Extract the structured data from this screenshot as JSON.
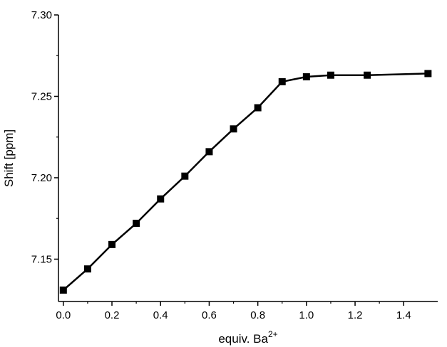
{
  "chart_data": {
    "type": "line",
    "title": "",
    "xlabel": "equiv. Ba",
    "xlabel_superscript": "2+",
    "ylabel": "Shift [ppm]",
    "xlim": [
      -0.02,
      1.54
    ],
    "ylim": [
      7.124,
      7.3
    ],
    "x_ticks": [
      0.0,
      0.2,
      0.4,
      0.6,
      0.8,
      1.0,
      1.2,
      1.4
    ],
    "x_tick_labels": [
      "0.0",
      "0.2",
      "0.4",
      "0.6",
      "0.8",
      "1.0",
      "1.2",
      "1.4"
    ],
    "y_ticks": [
      7.15,
      7.2,
      7.25,
      7.3
    ],
    "y_tick_labels": [
      "7.15",
      "7.20",
      "7.25",
      "7.30"
    ],
    "grid": false,
    "legend": "none",
    "line_color": "#000000",
    "marker": "square",
    "series": [
      {
        "x": [
          0.0,
          0.1,
          0.2,
          0.3,
          0.4,
          0.5,
          0.6,
          0.7,
          0.8,
          0.9,
          1.0,
          1.1,
          1.25,
          1.5
        ],
        "values": [
          7.131,
          7.144,
          7.159,
          7.172,
          7.187,
          7.201,
          7.216,
          7.23,
          7.243,
          7.259,
          7.262,
          7.263,
          7.263,
          7.264
        ]
      }
    ]
  }
}
